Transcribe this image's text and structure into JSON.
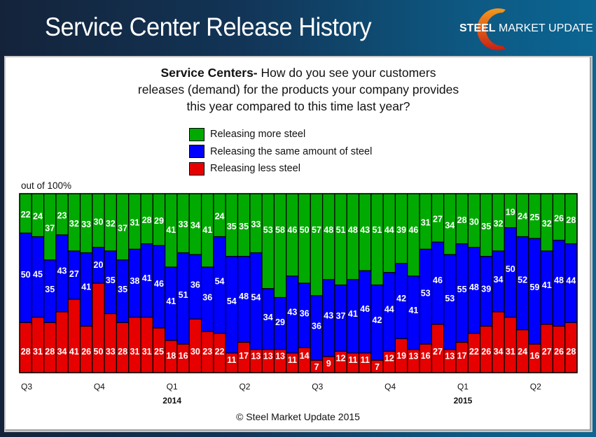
{
  "header": {
    "title": "Service Center Release History",
    "logo": {
      "bold": "STEEL",
      "mid": " MARKET",
      "light": " UPDATE"
    }
  },
  "question": {
    "lead": "Service Centers-",
    "text": " How do you  see your customers releases (demand) for the products your company provides this year compared to this time last year?"
  },
  "legend": [
    {
      "label": "Releasing more steel",
      "color": "#00aa00"
    },
    {
      "label": "Releasing the same amount of steel",
      "color": "#0000ff"
    },
    {
      "label": "Releasing less steel",
      "color": "#e60000"
    }
  ],
  "y_note": "out of 100%",
  "copyright": "© Steel Market Update 2015",
  "chart_data": {
    "type": "bar",
    "stacked": true,
    "title": "Service Centers- How do you see your customers releases (demand) for the products your company provides this year compared to this time last year?",
    "ylabel": "out of 100%",
    "ylim": [
      0,
      100
    ],
    "legend_position": "top",
    "x_quarter_labels": [
      {
        "label": "Q3",
        "index": 0
      },
      {
        "label": "Q4",
        "index": 6
      },
      {
        "label": "Q1",
        "index": 12,
        "year": "2014"
      },
      {
        "label": "Q2",
        "index": 18
      },
      {
        "label": "Q3",
        "index": 24
      },
      {
        "label": "Q4",
        "index": 30
      },
      {
        "label": "Q1",
        "index": 36,
        "year": "2015"
      },
      {
        "label": "Q2",
        "index": 42
      }
    ],
    "series": [
      {
        "name": "Releasing less steel",
        "color": "#e60000",
        "values": [
          28,
          31,
          28,
          34,
          41,
          26,
          50,
          33,
          28,
          31,
          31,
          25,
          18,
          16,
          30,
          23,
          22,
          11,
          17,
          13,
          13,
          13,
          11,
          14,
          7,
          9,
          12,
          11,
          11,
          7,
          12,
          19,
          13,
          16,
          27,
          13,
          17,
          22,
          26,
          34,
          31,
          24,
          16,
          27,
          26,
          28
        ]
      },
      {
        "name": "Releasing the same amount of steel",
        "color": "#0000ff",
        "values": [
          50,
          45,
          35,
          43,
          27,
          41,
          20,
          35,
          35,
          38,
          41,
          46,
          41,
          51,
          36,
          36,
          54,
          54,
          48,
          54,
          34,
          29,
          43,
          36,
          36,
          43,
          37,
          41,
          46,
          42,
          44,
          42,
          41,
          53,
          46,
          53,
          55,
          48,
          39,
          34,
          50,
          52,
          59,
          41,
          48,
          44
        ]
      },
      {
        "name": "Releasing more steel",
        "color": "#00aa00",
        "values": [
          22,
          24,
          37,
          23,
          32,
          33,
          30,
          32,
          37,
          31,
          28,
          29,
          41,
          33,
          34,
          41,
          24,
          35,
          35,
          33,
          53,
          58,
          46,
          50,
          57,
          48,
          51,
          48,
          43,
          51,
          44,
          39,
          46,
          31,
          27,
          34,
          28,
          30,
          35,
          32,
          19,
          24,
          25,
          32,
          26,
          28
        ]
      }
    ]
  }
}
